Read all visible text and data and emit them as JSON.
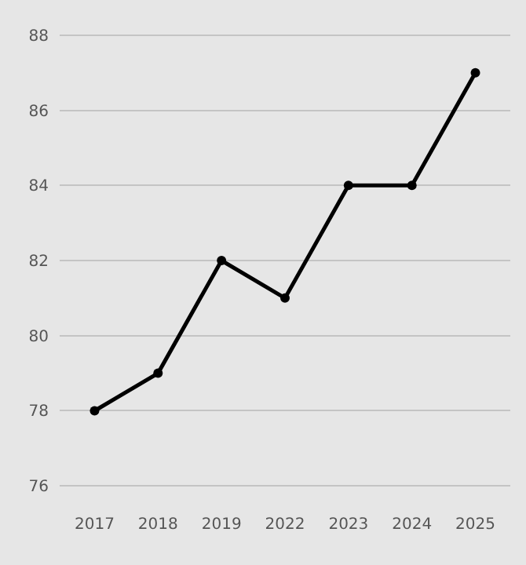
{
  "chart_data": {
    "type": "line",
    "categories": [
      "2017",
      "2018",
      "2019",
      "2022",
      "2023",
      "2024",
      "2025"
    ],
    "series": [
      {
        "color": "#000000",
        "values": [
          78,
          79,
          82,
          81,
          84,
          84,
          87
        ]
      }
    ],
    "ylim": [
      75.9,
      88.1
    ],
    "yticks": [
      76,
      78,
      80,
      82,
      84,
      86,
      88
    ],
    "grid": "y",
    "marker": "circle",
    "line_style": "solid"
  }
}
